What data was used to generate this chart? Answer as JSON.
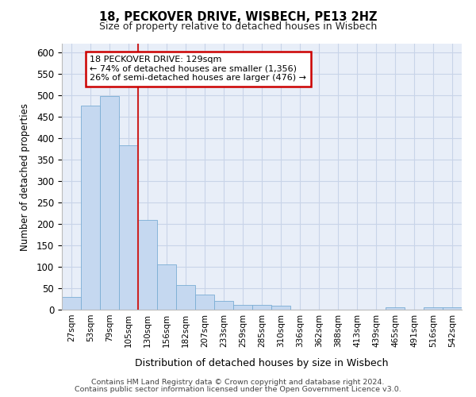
{
  "title1": "18, PECKOVER DRIVE, WISBECH, PE13 2HZ",
  "title2": "Size of property relative to detached houses in Wisbech",
  "xlabel": "Distribution of detached houses by size in Wisbech",
  "ylabel": "Number of detached properties",
  "bar_labels": [
    "27sqm",
    "53sqm",
    "79sqm",
    "105sqm",
    "130sqm",
    "156sqm",
    "182sqm",
    "207sqm",
    "233sqm",
    "259sqm",
    "285sqm",
    "310sqm",
    "336sqm",
    "362sqm",
    "388sqm",
    "413sqm",
    "439sqm",
    "465sqm",
    "491sqm",
    "516sqm",
    "542sqm"
  ],
  "bar_values": [
    30,
    475,
    497,
    383,
    210,
    105,
    57,
    35,
    20,
    12,
    11,
    10,
    0,
    0,
    0,
    0,
    0,
    5,
    0,
    5,
    5
  ],
  "bar_color": "#c5d8f0",
  "bar_edge_color": "#7aadd4",
  "annotation_label": "18 PECKOVER DRIVE: 129sqm",
  "annotation_line1": "← 74% of detached houses are smaller (1,356)",
  "annotation_line2": "26% of semi-detached houses are larger (476) →",
  "annotation_box_color": "#ffffff",
  "annotation_box_edge": "#cc0000",
  "vline_color": "#cc2222",
  "vline_x": 3.5,
  "ylim": [
    0,
    620
  ],
  "yticks": [
    0,
    50,
    100,
    150,
    200,
    250,
    300,
    350,
    400,
    450,
    500,
    550,
    600
  ],
  "grid_color": "#c8d4e8",
  "bg_color": "#e8eef8",
  "footer1": "Contains HM Land Registry data © Crown copyright and database right 2024.",
  "footer2": "Contains public sector information licensed under the Open Government Licence v3.0."
}
